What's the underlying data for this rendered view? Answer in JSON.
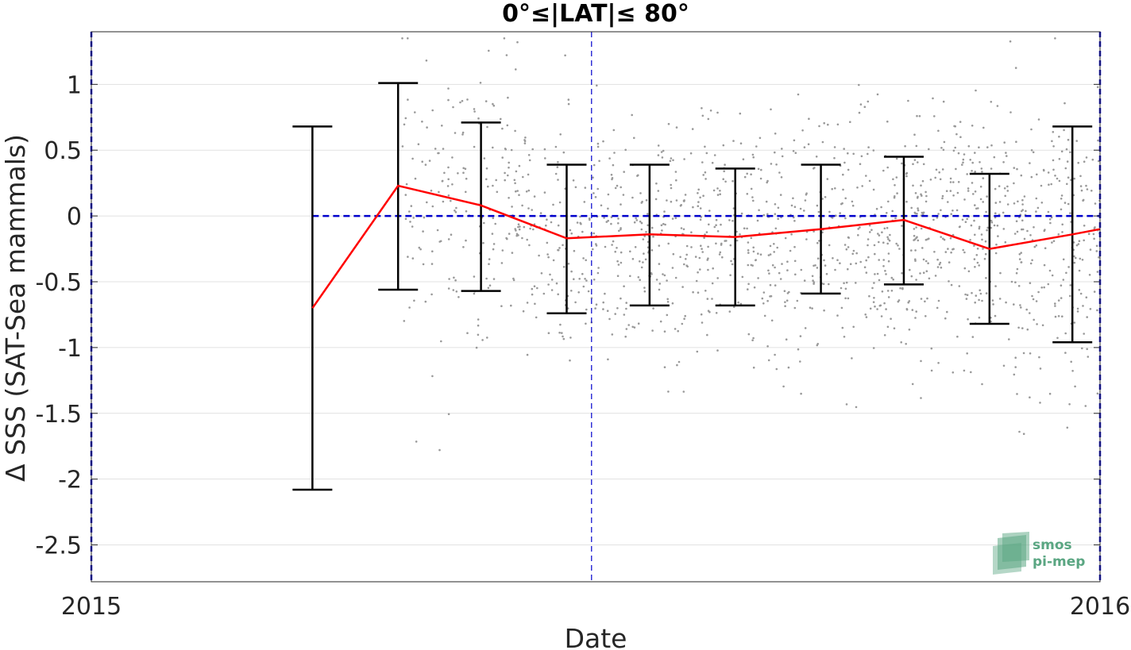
{
  "chart_data": {
    "type": "scatter",
    "title": "0°≤|LAT|≤ 80°",
    "xlabel": "Date",
    "ylabel": "Δ SSS (SAT-Sea mammals)",
    "xlim": [
      "2015-01-01",
      "2016-01-01"
    ],
    "ylim": [
      -2.78,
      1.4
    ],
    "x_ticks": [
      {
        "value": "2015-01-01",
        "label": "2015"
      },
      {
        "value": "2016-01-01",
        "label": "2016"
      }
    ],
    "y_ticks": [
      {
        "value": 1,
        "label": "1"
      },
      {
        "value": 0.5,
        "label": "0.5"
      },
      {
        "value": 0,
        "label": "0"
      },
      {
        "value": -0.5,
        "label": "-0.5"
      },
      {
        "value": -1,
        "label": "-1"
      },
      {
        "value": -1.5,
        "label": "-1.5"
      },
      {
        "value": -2,
        "label": "-2"
      },
      {
        "value": -2.5,
        "label": "-2.5"
      }
    ],
    "grid": "horizontal",
    "series": [
      {
        "kind": "monthly_mean_with_errorbars",
        "color": "#ff0000",
        "errorbar_color": "#000000",
        "x": [
          "2015-03-22",
          "2015-04-22",
          "2015-05-22",
          "2015-06-22",
          "2015-07-22",
          "2015-08-22",
          "2015-09-22",
          "2015-10-22",
          "2015-11-22",
          "2015-12-22",
          "2016-01-01"
        ],
        "mean": [
          -0.7,
          0.23,
          0.08,
          -0.17,
          -0.14,
          -0.16,
          -0.1,
          -0.03,
          -0.25,
          -0.14,
          -0.1
        ],
        "err_upper": [
          0.68,
          1.01,
          0.71,
          0.39,
          0.39,
          0.36,
          0.39,
          0.45,
          0.32,
          0.68,
          null
        ],
        "err_lower": [
          -2.08,
          -0.56,
          -0.57,
          -0.74,
          -0.68,
          -0.68,
          -0.59,
          -0.52,
          -0.82,
          -0.96,
          null
        ]
      },
      {
        "kind": "individual_differences",
        "color": "#999999",
        "x_range": [
          "2015-04-01",
          "2016-01-01"
        ],
        "y_range": [
          -2.55,
          1.35
        ]
      }
    ],
    "reference_lines": [
      {
        "orientation": "horizontal",
        "value": 0,
        "color": "#0000cc",
        "style": "dashed",
        "from": "2015-03-22"
      },
      {
        "orientation": "vertical",
        "value": "2015-07-01",
        "color": "#0000cc",
        "style": "dashed"
      },
      {
        "orientation": "vertical",
        "value": "2015-01-01",
        "color": "#0000cc",
        "style": "dashed"
      },
      {
        "orientation": "vertical",
        "value": "2016-01-01",
        "color": "#0000cc",
        "style": "dashed"
      }
    ]
  },
  "logo": {
    "line1": "smos",
    "line2": "pi-mep",
    "color": "#5aa682"
  }
}
